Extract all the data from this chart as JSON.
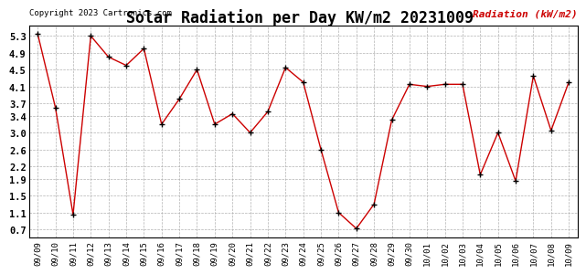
{
  "title": "Solar Radiation per Day KW/m2 20231009",
  "copyright": "Copyright 2023 Cartronics.com",
  "legend_label": "Radiation (kW/m2)",
  "dates": [
    "09/09",
    "09/10",
    "09/11",
    "09/12",
    "09/13",
    "09/14",
    "09/15",
    "09/16",
    "09/17",
    "09/18",
    "09/19",
    "09/20",
    "09/21",
    "09/22",
    "09/23",
    "09/24",
    "09/25",
    "09/26",
    "09/27",
    "09/28",
    "09/29",
    "09/30",
    "10/01",
    "10/02",
    "10/03",
    "10/04",
    "10/05",
    "10/06",
    "10/07",
    "10/08",
    "10/09"
  ],
  "values": [
    5.35,
    3.6,
    1.05,
    5.3,
    4.8,
    4.6,
    5.0,
    3.2,
    3.8,
    4.5,
    3.2,
    3.45,
    3.0,
    3.5,
    4.55,
    4.2,
    2.6,
    1.1,
    0.72,
    1.3,
    3.3,
    4.15,
    4.1,
    4.15,
    4.15,
    2.0,
    3.0,
    1.85,
    4.35,
    3.05,
    4.2
  ],
  "line_color": "#cc0000",
  "marker_color": "#000000",
  "grid_color": "#aaaaaa",
  "bg_color": "#ffffff",
  "title_fontsize": 12,
  "yticks": [
    0.7,
    1.1,
    1.5,
    1.9,
    2.2,
    2.6,
    3.0,
    3.4,
    3.7,
    4.1,
    4.5,
    4.9,
    5.3
  ],
  "ylim": [
    0.5,
    5.55
  ],
  "legend_color": "#cc0000"
}
